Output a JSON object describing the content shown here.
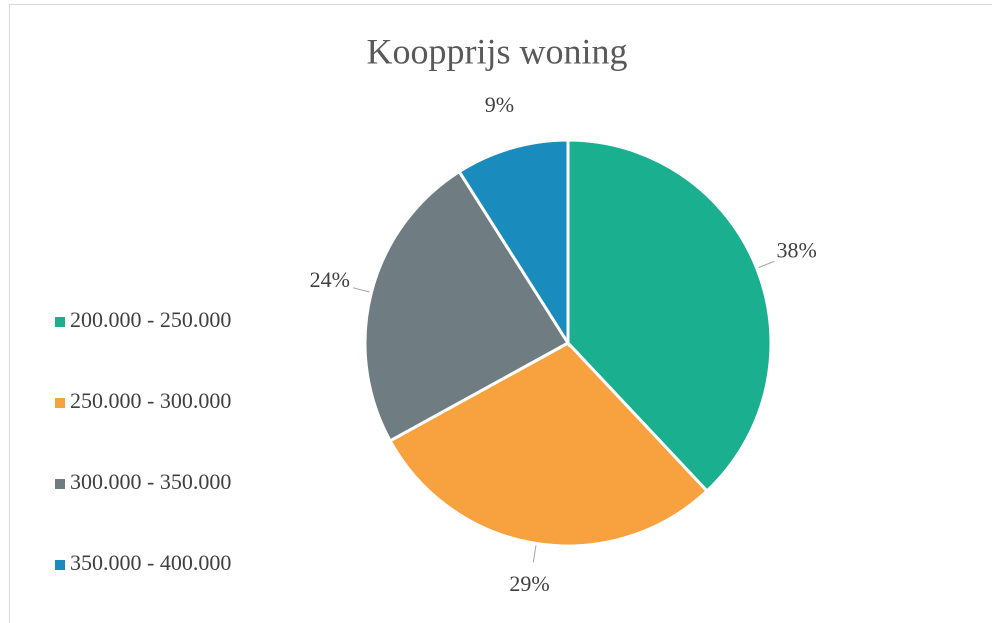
{
  "chart_data": {
    "type": "pie",
    "title": "Koopprijs woning",
    "categories": [
      "200.000 - 250.000",
      "250.000 - 300.000",
      "300.000 - 350.000",
      "350.000 - 400.000"
    ],
    "values": [
      38,
      29,
      24,
      9
    ],
    "value_labels": [
      "38%",
      "29%",
      "24%",
      "9%"
    ],
    "colors": [
      "#1aaf8f",
      "#f7a23f",
      "#6f7c82",
      "#1a8bbd"
    ],
    "legend": "left"
  }
}
